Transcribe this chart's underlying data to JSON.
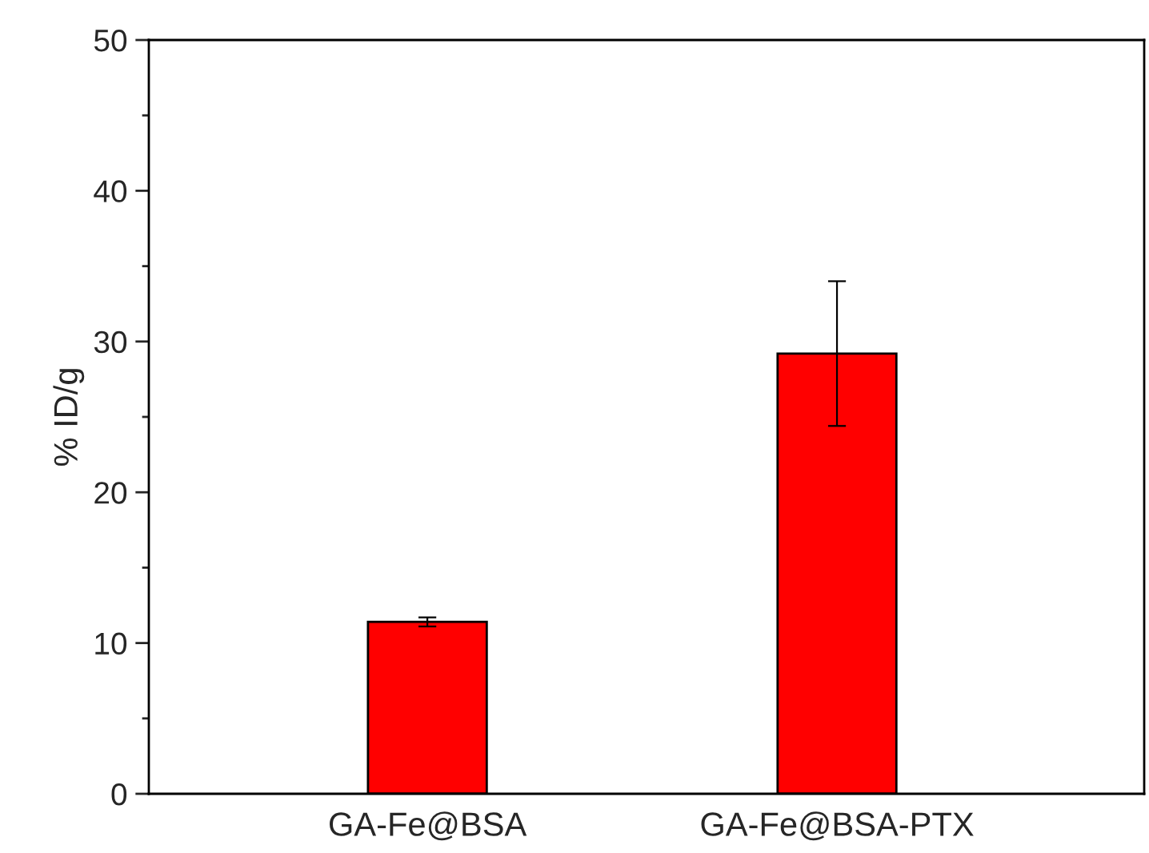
{
  "chart_data": {
    "type": "bar",
    "ylabel": "% ID/g",
    "categories": [
      "GA-Fe@BSA",
      "GA-Fe@BSA-PTX"
    ],
    "values": [
      11.4,
      29.2
    ],
    "errors": [
      0.3,
      4.8
    ],
    "color": "#ff0000",
    "ylim": [
      0,
      50
    ],
    "yticks": [
      0,
      10,
      20,
      30,
      40,
      50
    ],
    "grid": false
  }
}
